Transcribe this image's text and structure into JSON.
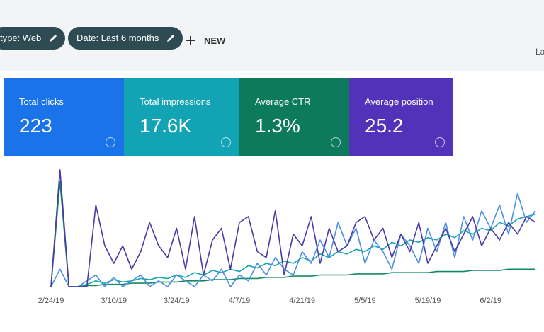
{
  "toolbar": {
    "filters": [
      "type: Web",
      "Date: Last 6 months"
    ],
    "new": "NEW",
    "right": "La"
  },
  "cards": [
    {
      "label": "Total clicks",
      "value": "223",
      "color": "#1a73e8"
    },
    {
      "label": "Total impressions",
      "value": "17.6K",
      "color": "#12a4b4"
    },
    {
      "label": "Average CTR",
      "value": "1.3%",
      "color": "#0d7a5c"
    },
    {
      "label": "Average position",
      "value": "25.2",
      "color": "#5232b8"
    }
  ],
  "chart_data": {
    "type": "line",
    "categories": [
      "2/24/19",
      null,
      null,
      null,
      null,
      null,
      null,
      "3/10/19",
      null,
      null,
      null,
      null,
      null,
      null,
      "3/24/19",
      null,
      null,
      null,
      null,
      null,
      null,
      "4/7/19",
      null,
      null,
      null,
      null,
      null,
      null,
      "4/21/19",
      null,
      null,
      null,
      null,
      null,
      null,
      "5/5/19",
      null,
      null,
      null,
      null,
      null,
      null,
      "5/19/19",
      null,
      null,
      null,
      null,
      null,
      null,
      "6/2/19",
      null,
      null,
      null,
      null,
      null
    ],
    "ylim": [
      0,
      100
    ],
    "series": [
      {
        "color": "#4b3aa6",
        "values": [
          0,
          100,
          0,
          0,
          0,
          70,
          35,
          20,
          35,
          15,
          30,
          55,
          35,
          25,
          50,
          15,
          60,
          10,
          40,
          50,
          15,
          55,
          60,
          30,
          25,
          65,
          10,
          45,
          35,
          60,
          20,
          50,
          30,
          35,
          55,
          60,
          40,
          50,
          25,
          45,
          30,
          55,
          20,
          35,
          50,
          30,
          45,
          60,
          35,
          50,
          40,
          55,
          45,
          60,
          55
        ]
      },
      {
        "color": "#4a90e2",
        "values": [
          0,
          15,
          0,
          0,
          5,
          10,
          0,
          8,
          0,
          5,
          10,
          0,
          5,
          0,
          10,
          5,
          0,
          10,
          5,
          15,
          0,
          10,
          5,
          20,
          10,
          25,
          15,
          10,
          30,
          20,
          40,
          25,
          55,
          35,
          50,
          20,
          40,
          30,
          15,
          45,
          35,
          20,
          50,
          30,
          55,
          25,
          60,
          40,
          65,
          50,
          70,
          45,
          80,
          55,
          65
        ]
      },
      {
        "color": "#16a5b0",
        "values": [
          0,
          100,
          0,
          0,
          2,
          5,
          3,
          6,
          4,
          5,
          7,
          6,
          8,
          7,
          10,
          8,
          12,
          10,
          14,
          12,
          15,
          13,
          18,
          16,
          20,
          18,
          22,
          20,
          25,
          22,
          28,
          25,
          30,
          28,
          32,
          30,
          35,
          32,
          38,
          35,
          40,
          38,
          42,
          40,
          45,
          42,
          48,
          45,
          50,
          48,
          55,
          52,
          58,
          60,
          62
        ]
      },
      {
        "color": "#138a5e",
        "values": [
          0,
          90,
          0,
          0,
          1,
          1,
          2,
          2,
          2,
          3,
          3,
          3,
          4,
          4,
          4,
          5,
          5,
          5,
          6,
          6,
          6,
          7,
          7,
          7,
          8,
          8,
          8,
          9,
          9,
          9,
          10,
          10,
          10,
          10,
          11,
          11,
          11,
          11,
          12,
          12,
          12,
          12,
          12,
          13,
          13,
          13,
          13,
          14,
          14,
          14,
          14,
          15,
          15,
          15,
          15
        ]
      }
    ]
  }
}
